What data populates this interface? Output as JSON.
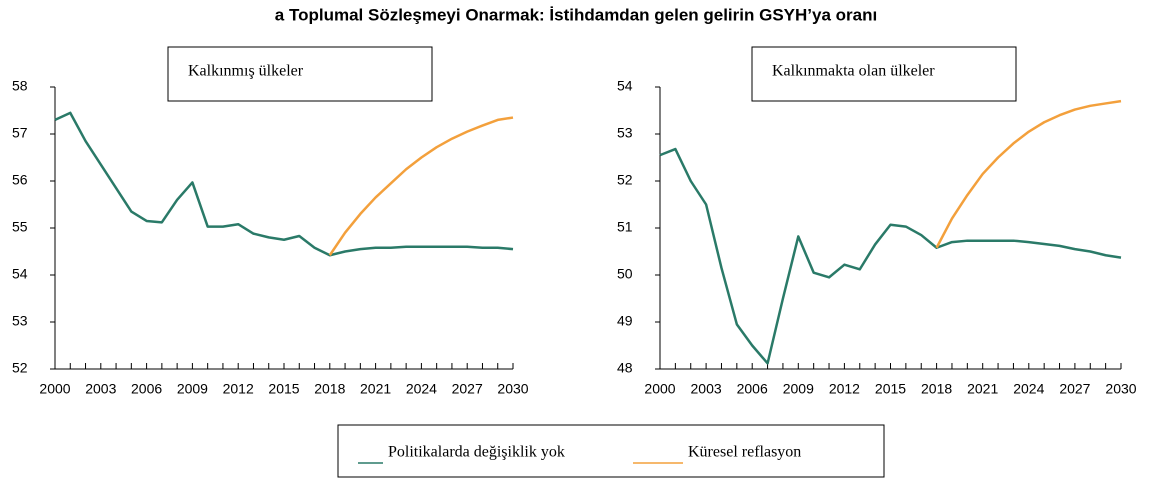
{
  "title": "a Toplumal Sözleşmeyi Onarmak: İstihdamdan gelen gelirin GSYH’ya oranı",
  "chart_data": [
    {
      "type": "line",
      "label": "Kalkınmış ülkeler",
      "x": [
        2000,
        2001,
        2002,
        2003,
        2004,
        2005,
        2006,
        2007,
        2008,
        2009,
        2010,
        2011,
        2012,
        2013,
        2014,
        2015,
        2016,
        2017,
        2018,
        2019,
        2020,
        2021,
        2022,
        2023,
        2024,
        2025,
        2026,
        2027,
        2028,
        2029,
        2030
      ],
      "xlim": [
        2000,
        2030
      ],
      "xticks": [
        2000,
        2003,
        2006,
        2009,
        2012,
        2015,
        2018,
        2021,
        2024,
        2027,
        2030
      ],
      "ylim": [
        52,
        58
      ],
      "yticks": [
        52,
        53,
        54,
        55,
        56,
        57,
        58
      ],
      "series": [
        {
          "name": "Politikalarda değişiklik yok",
          "color": "#2a7a68",
          "values": [
            57.3,
            57.45,
            56.85,
            56.35,
            55.85,
            55.35,
            55.15,
            55.12,
            55.6,
            55.97,
            55.03,
            55.03,
            55.08,
            54.88,
            54.8,
            54.75,
            54.83,
            54.58,
            54.42,
            54.5,
            54.55,
            54.58,
            54.58,
            54.6,
            54.6,
            54.6,
            54.6,
            54.6,
            54.58,
            54.58,
            54.55
          ]
        },
        {
          "name": "Küresel reflasyon",
          "color": "#f3a03c",
          "values": [
            null,
            null,
            null,
            null,
            null,
            null,
            null,
            null,
            null,
            null,
            null,
            null,
            null,
            null,
            null,
            null,
            null,
            null,
            54.42,
            54.9,
            55.3,
            55.65,
            55.95,
            56.25,
            56.5,
            56.72,
            56.9,
            57.05,
            57.18,
            57.3,
            57.35
          ]
        }
      ]
    },
    {
      "type": "line",
      "label": "Kalkınmakta olan ülkeler",
      "x": [
        2000,
        2001,
        2002,
        2003,
        2004,
        2005,
        2006,
        2007,
        2008,
        2009,
        2010,
        2011,
        2012,
        2013,
        2014,
        2015,
        2016,
        2017,
        2018,
        2019,
        2020,
        2021,
        2022,
        2023,
        2024,
        2025,
        2026,
        2027,
        2028,
        2029,
        2030
      ],
      "xlim": [
        2000,
        2030
      ],
      "xticks": [
        2000,
        2003,
        2006,
        2009,
        2012,
        2015,
        2018,
        2021,
        2024,
        2027,
        2030
      ],
      "ylim": [
        48,
        54
      ],
      "yticks": [
        48,
        49,
        50,
        51,
        52,
        53,
        54
      ],
      "series": [
        {
          "name": "Politikalarda değişiklik yok",
          "color": "#2a7a68",
          "values": [
            52.55,
            52.68,
            52.0,
            51.5,
            50.15,
            48.95,
            48.5,
            48.12,
            49.5,
            50.82,
            50.05,
            49.95,
            50.22,
            50.12,
            50.65,
            51.07,
            51.03,
            50.85,
            50.58,
            50.7,
            50.73,
            50.73,
            50.73,
            50.73,
            50.7,
            50.66,
            50.62,
            50.55,
            50.5,
            50.42,
            50.37
          ]
        },
        {
          "name": "Küresel reflasyon",
          "color": "#f3a03c",
          "values": [
            null,
            null,
            null,
            null,
            null,
            null,
            null,
            null,
            null,
            null,
            null,
            null,
            null,
            null,
            null,
            null,
            null,
            null,
            50.58,
            51.2,
            51.7,
            52.15,
            52.5,
            52.8,
            53.05,
            53.25,
            53.4,
            53.52,
            53.6,
            53.65,
            53.7
          ]
        }
      ]
    }
  ]
}
